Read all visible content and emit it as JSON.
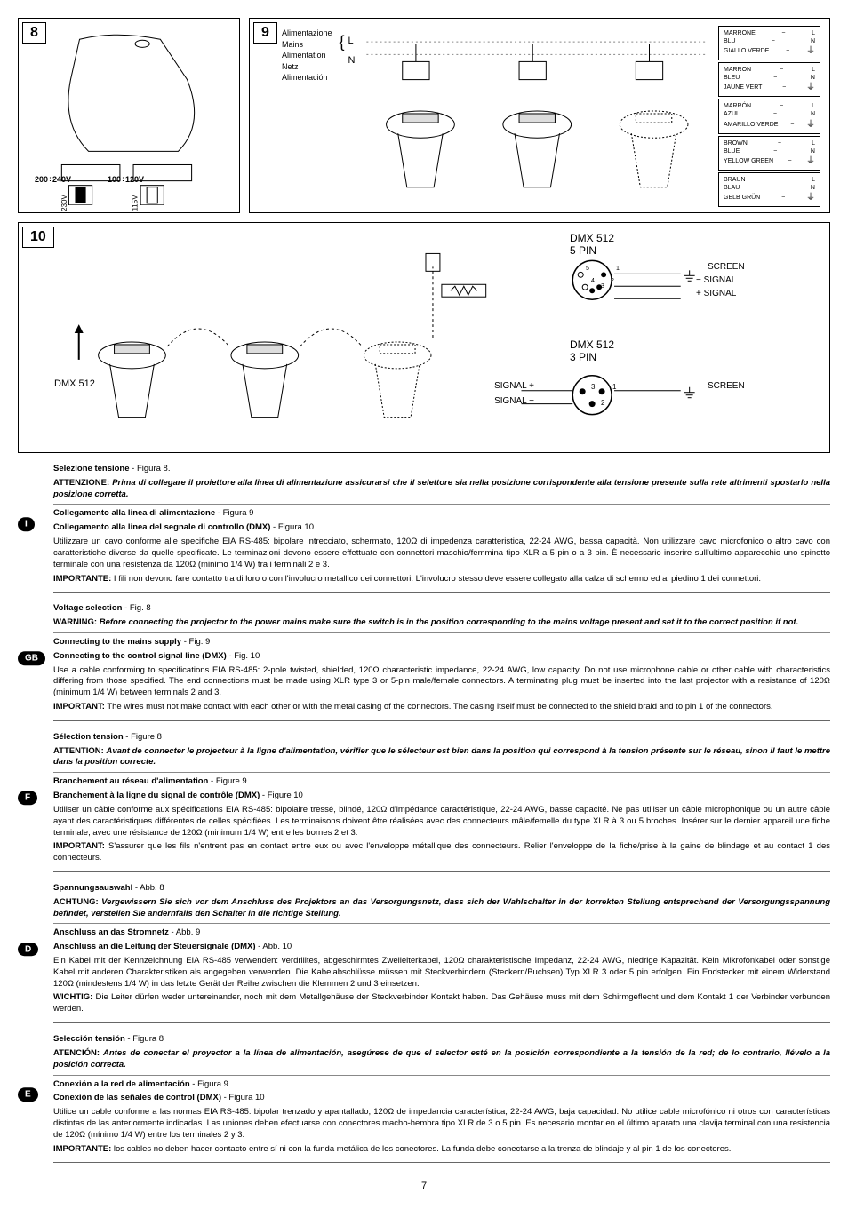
{
  "page_number": "7",
  "fig8": {
    "number": "8",
    "label_left": "200÷240V",
    "label_right": "100÷120V",
    "switch_left": "230V",
    "switch_right": "115V"
  },
  "fig9": {
    "number": "9",
    "mains_labels": [
      "Alimentazione",
      "Mains",
      "Alimentation",
      "Netz",
      "Alimentación"
    ],
    "L": "L",
    "N": "N",
    "wire_boxes": [
      {
        "c1": "MARRONE",
        "c2": "BLU",
        "c3": "GIALLO VERDE"
      },
      {
        "c1": "MARRON",
        "c2": "BLEU",
        "c3": "JAUNE VERT"
      },
      {
        "c1": "MARRÓN",
        "c2": "AZUL",
        "c3": "AMARILLO VERDE"
      },
      {
        "c1": "BROWN",
        "c2": "BLUE",
        "c3": "YELLOW GREEN"
      },
      {
        "c1": "BRAUN",
        "c2": "BLAU",
        "c3": "GELB GRÜN"
      }
    ],
    "sym_L": "L",
    "sym_N": "N"
  },
  "fig10": {
    "number": "10",
    "dmx_label": "DMX 512",
    "dmx5_title": "DMX 512",
    "dmx5_sub": "5 PIN",
    "dmx3_title": "DMX 512",
    "dmx3_sub": "3 PIN",
    "pin5": {
      "1": "1",
      "2": "2",
      "3": "3",
      "4": "4",
      "5": "5"
    },
    "pin3": {
      "1": "1",
      "2": "2",
      "3": "3"
    },
    "screen": "SCREEN",
    "signal_minus": "SIGNAL",
    "signal_plus": "SIGNAL",
    "signal_plus_sym": "+",
    "signal_minus_sym": "−",
    "dash": "−"
  },
  "sections": [
    {
      "code": "I",
      "blocks": [
        {
          "title": "Selezione tensione",
          "ref": " - Figura 8.",
          "warn_label": "ATTENZIONE:",
          "warn": "Prima di collegare il proiettore alla linea di alimentazione assicurarsi che il selettore sia nella posizione corrispondente alla tensione presente sulla rete altrimenti spostarlo nella posizione corretta."
        },
        {
          "title": "Collegamento alla linea di alimentazione",
          "ref": " - Figura 9"
        },
        {
          "title": "Collegamento alla linea del segnale di controllo (DMX)",
          "ref": " - Figura 10",
          "body": "Utilizzare un cavo conforme alle specifiche EIA RS-485: bipolare intrecciato, schermato, 120Ω di impedenza caratteristica, 22-24 AWG, bassa capacità. Non utilizzare cavo microfonico o altro cavo con caratteristiche diverse da quelle specificate. Le terminazioni devono essere effettuate con connettori maschio/femmina tipo XLR a 5 pin o a 3 pin. È necessario inserire sull'ultimo apparecchio uno spinotto terminale con una resistenza da 120Ω (minimo 1/4 W) tra i terminali 2 e 3.",
          "imp_label": "IMPORTANTE:",
          "imp": "I fili non devono fare contatto tra di loro o con l'involucro metallico dei connettori. L'involucro stesso deve essere collegato alla calza di schermo ed al piedino 1 dei connettori."
        }
      ]
    },
    {
      "code": "GB",
      "blocks": [
        {
          "title": "Voltage selection",
          "ref": " - Fig. 8",
          "warn_label": "WARNING:",
          "warn": "Before connecting the projector to the power mains make sure the switch is in the position corresponding to the mains voltage present and set it to the correct position if not."
        },
        {
          "title": "Connecting to the mains supply",
          "ref": " - Fig. 9"
        },
        {
          "title": "Connecting to the control signal line (DMX)",
          "ref": " - Fig. 10",
          "body": "Use a cable conforming to specifications EIA RS-485: 2-pole twisted, shielded, 120Ω characteristic impedance, 22-24 AWG, low capacity. Do not use microphone cable or other cable with characteristics differing from those specified. The end connections must be made using XLR type 3 or 5-pin male/female connectors. A terminating plug must be inserted into the last projector with a resistance of 120Ω (minimum 1/4 W) between terminals 2 and 3.",
          "imp_label": "IMPORTANT:",
          "imp": "The wires must not make contact with each other or with the metal casing of the connectors. The casing itself must be connected to the shield braid and to pin 1 of the connectors."
        }
      ]
    },
    {
      "code": "F",
      "blocks": [
        {
          "title": "Sélection tension",
          "ref": " - Figure 8",
          "warn_label": "ATTENTION:",
          "warn": "Avant de connecter le projecteur à la ligne d'alimentation, vérifier que le sélecteur est bien dans la position qui correspond à la tension présente sur le réseau, sinon il faut le mettre dans la position correcte."
        },
        {
          "title": "Branchement au réseau d'alimentation",
          "ref": " - Figure 9"
        },
        {
          "title": "Branchement à la ligne du signal de contrôle (DMX)",
          "ref": " - Figure 10",
          "body": "Utiliser un câble conforme aux spécifications EIA RS-485: bipolaire tressé, blindé, 120Ω d'impédance caractéristique, 22-24 AWG, basse capacité. Ne pas utiliser un câble microphonique ou un autre câble ayant des caractéristiques différentes de celles spécifiées. Les terminaisons doivent être réalisées avec des connecteurs mâle/femelle du type XLR à 3 ou 5 broches. Insérer sur le dernier appareil une fiche terminale, avec une résistance de 120Ω  (minimum 1/4 W) entre les bornes 2 et 3.",
          "imp_label": "IMPORTANT:",
          "imp": "S'assurer que les fils n'entrent pas en contact entre eux ou avec l'enveloppe métallique des connecteurs. Relier l'enveloppe de la fiche/prise à la gaine de blindage et au contact 1 des connecteurs."
        }
      ]
    },
    {
      "code": "D",
      "blocks": [
        {
          "title": "Spannungsauswahl",
          "ref": " - Abb. 8",
          "warn_label": "ACHTUNG:",
          "warn": "Vergewissern Sie sich vor dem Anschluss des Projektors an das Versorgungsnetz, dass sich der Wahlschalter in der korrekten Stellung entsprechend der Versorgungsspannung befindet, verstellen Sie andernfalls den Schalter in die richtige Stellung."
        },
        {
          "title": "Anschluss an das Stromnetz",
          "ref": " - Abb. 9"
        },
        {
          "title": "Anschluss an die Leitung der Steuersignale (DMX)",
          "ref": " - Abb. 10",
          "body": "Ein Kabel mit der Kennzeichnung EIA RS-485 verwenden: verdrilltes, abgeschirmtes Zweileiterkabel, 120Ω charakteristische Impedanz, 22-24 AWG, niedrige Kapazität. Kein Mikrofonkabel oder sonstige Kabel mit anderen Charakteristiken als angegeben verwenden. Die Kabelabschlüsse müssen mit Steckverbindern (Steckern/Buchsen) Typ XLR 3 oder 5 pin erfolgen. Ein Endstecker mit einem Widerstand 120Ω (mindestens 1/4 W) in das letzte Gerät der Reihe zwischen die Klemmen 2 und 3 einsetzen.",
          "imp_label": "WICHTIG:",
          "imp": "Die Leiter dürfen weder untereinander, noch mit dem Metallgehäuse der Steckverbinder Kontakt haben. Das Gehäuse muss mit dem Schirmgeflecht und dem Kontakt 1 der Verbinder verbunden werden."
        }
      ]
    },
    {
      "code": "E",
      "blocks": [
        {
          "title": "Selección tensión",
          "ref": " - Figura 8",
          "warn_label": "ATENCIÓN:",
          "warn": "Antes de conectar el proyector a la línea de alimentación, asegúrese de que el selector esté en la posición correspondiente a la tensión de la red; de lo contrario, llévelo a la posición correcta."
        },
        {
          "title": "Conexión a la red de alimentación",
          "ref": " - Figura 9"
        },
        {
          "title": "Conexión de las señales de control (DMX) ",
          "ref": " - Figura 10",
          "body": "Utilice un cable conforme a las normas EIA RS-485: bipolar trenzado y apantallado, 120Ω de impedancia característica, 22-24 AWG, baja capacidad. No utilice cable microfónico ni otros con características distintas de las anteriormente indicadas. Las uniones deben efectuarse con conectores macho-hembra tipo XLR de 3 o 5 pin. Es necesario montar en el último aparato una clavija terminal con una resistencia de 120Ω (mínimo 1/4 W) entre los terminales 2 y 3.",
          "imp_label": "IMPORTANTE:",
          "imp": "los cables no deben hacer contacto entre sí ni con la funda metálica de los conectores. La funda debe conectarse a la trenza de blindaje y al pin 1 de los conectores."
        }
      ]
    }
  ]
}
